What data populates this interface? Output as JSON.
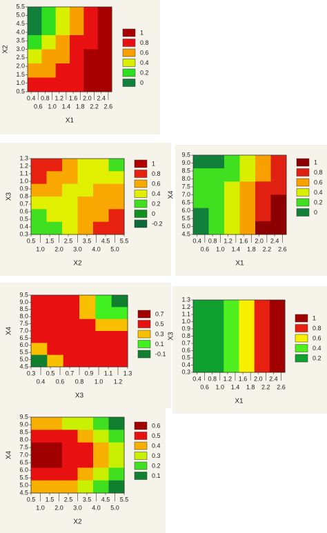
{
  "chart_data": [
    {
      "type": "contour",
      "xlabel": "X1",
      "ylabel": "X2",
      "xlim": [
        0.3,
        2.7
      ],
      "ylim": [
        0.5,
        5.5
      ],
      "xticks": [
        0.4,
        0.6,
        0.8,
        {
          "value": 1,
          "label": "1.0"
        },
        1.2,
        1.4,
        1.6,
        1.8,
        {
          "value": 2,
          "label": "2.0"
        },
        2.2,
        2.4,
        2.6
      ],
      "yticks": [
        0.5,
        {
          "value": 1,
          "label": "1.0"
        },
        1.5,
        {
          "value": 2,
          "label": "2.0"
        },
        2.5,
        {
          "value": 3,
          "label": "3.0"
        },
        3.5,
        {
          "value": 4,
          "label": "4.0"
        },
        4.5,
        {
          "value": 5,
          "label": "5.0"
        },
        5.5
      ],
      "z": [
        [
          0.0,
          0.2,
          0.5,
          0.7,
          0.9,
          1.05
        ],
        [
          0.1,
          0.3,
          0.55,
          0.75,
          0.95,
          1.05
        ],
        [
          0.3,
          0.45,
          0.6,
          0.8,
          0.95,
          1.05
        ],
        [
          0.5,
          0.6,
          0.7,
          0.85,
          1.0,
          1.05
        ],
        [
          0.7,
          0.75,
          0.8,
          0.9,
          1.0,
          1.05
        ],
        [
          0.85,
          0.85,
          0.9,
          0.95,
          1.0,
          1.05
        ]
      ],
      "levels": [
        1,
        0.8,
        0.6,
        0.4,
        0.2,
        0
      ],
      "colors": [
        "#a80000",
        "#e81010",
        "#f8a000",
        "#d8f000",
        "#30e020",
        "#10803a"
      ]
    },
    {
      "type": "contour",
      "xlabel": "X2",
      "ylabel": "X3",
      "xlim": [
        0.5,
        5.5
      ],
      "ylim": [
        0.3,
        1.3
      ],
      "xticks": [
        0.5,
        {
          "value": 1,
          "label": "1.0"
        },
        1.5,
        {
          "value": 2,
          "label": "2.0"
        },
        2.5,
        {
          "value": 3,
          "label": "3.0"
        },
        3.5,
        {
          "value": 4,
          "label": "4.0"
        },
        4.5,
        {
          "value": 5,
          "label": "5.0"
        },
        5.5
      ],
      "yticks": [
        0.3,
        0.4,
        0.5,
        0.6,
        0.7,
        0.8,
        0.9,
        {
          "value": 1,
          "label": "1.0"
        },
        1.1,
        1.2,
        1.3
      ],
      "z": [
        [
          0.9,
          0.8,
          0.6,
          0.5,
          0.4,
          0.3
        ],
        [
          0.8,
          0.7,
          0.6,
          0.5,
          0.45,
          0.4
        ],
        [
          0.6,
          0.6,
          0.55,
          0.55,
          0.6,
          0.6
        ],
        [
          0.45,
          0.5,
          0.55,
          0.6,
          0.65,
          0.7
        ],
        [
          0.3,
          0.4,
          0.5,
          0.6,
          0.75,
          0.85
        ],
        [
          0.2,
          0.3,
          0.5,
          0.65,
          0.85,
          0.95
        ]
      ],
      "levels": [
        1,
        0.8,
        0.6,
        0.4,
        0.2,
        0,
        -0.2
      ],
      "colors": [
        "#b00000",
        "#e82010",
        "#f8a800",
        "#e0f000",
        "#40e020",
        "#109020",
        "#0c6a3a"
      ]
    },
    {
      "type": "contour",
      "xlabel": "X1",
      "ylabel": "X4",
      "xlim": [
        0.3,
        2.7
      ],
      "ylim": [
        4.5,
        9.5
      ],
      "xticks": [
        0.4,
        0.6,
        0.8,
        {
          "value": 1,
          "label": "1.0"
        },
        1.2,
        1.4,
        1.6,
        1.8,
        {
          "value": 2,
          "label": "2.0"
        },
        2.2,
        2.4,
        2.6
      ],
      "yticks": [
        4.5,
        {
          "value": 5,
          "label": "5.0"
        },
        5.5,
        {
          "value": 6,
          "label": "6.0"
        },
        6.5,
        {
          "value": 7,
          "label": "7.0"
        },
        7.5,
        {
          "value": 8,
          "label": "8.0"
        },
        8.5,
        {
          "value": 9,
          "label": "9.0"
        },
        9.5
      ],
      "z": [
        [
          0.1,
          0.15,
          0.3,
          0.45,
          0.65,
          0.85
        ],
        [
          0.2,
          0.25,
          0.35,
          0.5,
          0.7,
          0.85
        ],
        [
          0.25,
          0.3,
          0.4,
          0.6,
          0.8,
          0.95
        ],
        [
          0.2,
          0.3,
          0.45,
          0.7,
          0.9,
          1.05
        ],
        [
          0.1,
          0.25,
          0.45,
          0.75,
          0.95,
          1.05
        ],
        [
          0.0,
          0.2,
          0.45,
          0.75,
          1.0,
          1.05
        ]
      ],
      "levels": [
        1,
        0.8,
        0.6,
        0.4,
        0.2,
        0
      ],
      "colors": [
        "#8c0000",
        "#e02010",
        "#f8a000",
        "#d8f000",
        "#40e020",
        "#10803a"
      ]
    },
    {
      "type": "contour",
      "xlabel": "X3",
      "ylabel": "X4",
      "xlim": [
        0.3,
        1.3
      ],
      "ylim": [
        4.5,
        9.5
      ],
      "xticks": [
        0.3,
        0.4,
        0.5,
        0.6,
        0.7,
        0.8,
        0.9,
        {
          "value": 1,
          "label": "1.0"
        },
        1.1,
        1.2,
        1.3
      ],
      "yticks": [
        4.5,
        {
          "value": 5,
          "label": "5.0"
        },
        5.5,
        {
          "value": 6,
          "label": "6.0"
        },
        6.5,
        {
          "value": 7,
          "label": "7.0"
        },
        7.5,
        {
          "value": 8,
          "label": "8.0"
        },
        8.5,
        {
          "value": 9,
          "label": "9.0"
        },
        9.5
      ],
      "z": [
        [
          0.5,
          0.55,
          0.5,
          0.3,
          0.1,
          -0.1
        ],
        [
          0.6,
          0.6,
          0.55,
          0.45,
          0.25,
          0.1
        ],
        [
          0.65,
          0.65,
          0.6,
          0.55,
          0.45,
          0.3
        ],
        [
          0.55,
          0.65,
          0.65,
          0.6,
          0.55,
          0.5
        ],
        [
          0.3,
          0.55,
          0.65,
          0.65,
          0.6,
          0.55
        ],
        [
          0.0,
          0.35,
          0.6,
          0.65,
          0.65,
          0.65
        ]
      ],
      "levels": [
        0.7,
        0.5,
        0.3,
        0.1,
        -0.1
      ],
      "colors": [
        "#a00000",
        "#e81010",
        "#f8c000",
        "#40f020",
        "#108030"
      ]
    },
    {
      "type": "contour",
      "xlabel": "X1",
      "ylabel": "X3",
      "xlim": [
        0.3,
        2.7
      ],
      "ylim": [
        0.3,
        1.3
      ],
      "xticks": [
        0.4,
        0.6,
        0.8,
        {
          "value": 1,
          "label": "1.0"
        },
        1.2,
        1.4,
        1.6,
        1.8,
        {
          "value": 2,
          "label": "2.0"
        },
        2.2,
        2.4,
        2.6
      ],
      "yticks": [
        0.3,
        0.4,
        0.5,
        0.6,
        0.7,
        0.8,
        0.9,
        {
          "value": 1,
          "label": "1.0"
        },
        1.1,
        1.2,
        1.3
      ],
      "z": [
        [
          0.3,
          0.3,
          0.5,
          0.7,
          0.85,
          1.0
        ],
        [
          0.3,
          0.3,
          0.5,
          0.7,
          0.85,
          1.0
        ],
        [
          0.25,
          0.3,
          0.45,
          0.65,
          0.85,
          1.0
        ],
        [
          0.25,
          0.3,
          0.45,
          0.65,
          0.85,
          1.0
        ],
        [
          0.2,
          0.25,
          0.45,
          0.65,
          0.85,
          1.0
        ],
        [
          0.2,
          0.25,
          0.45,
          0.65,
          0.85,
          1.0
        ]
      ],
      "levels": [
        1,
        0.8,
        0.6,
        0.4,
        0.2
      ],
      "colors": [
        "#a00000",
        "#e82010",
        "#f8f000",
        "#50f020",
        "#10a030"
      ]
    },
    {
      "type": "contour",
      "xlabel": "X2",
      "ylabel": "X4",
      "xlim": [
        0.5,
        5.5
      ],
      "ylim": [
        4.5,
        9.5
      ],
      "xticks": [
        0.5,
        {
          "value": 1,
          "label": "1.0"
        },
        1.5,
        {
          "value": 2,
          "label": "2.0"
        },
        2.5,
        {
          "value": 3,
          "label": "3.0"
        },
        3.5,
        {
          "value": 4,
          "label": "4.0"
        },
        4.5,
        {
          "value": 5,
          "label": "5.0"
        },
        5.5
      ],
      "yticks": [
        4.5,
        {
          "value": 5,
          "label": "5.0"
        },
        5.5,
        {
          "value": 6,
          "label": "6.0"
        },
        6.5,
        {
          "value": 7,
          "label": "7.0"
        },
        7.5,
        {
          "value": 8,
          "label": "8.0"
        },
        8.5,
        {
          "value": 9,
          "label": "9.0"
        },
        9.5
      ],
      "z": [
        [
          0.4,
          0.4,
          0.35,
          0.3,
          0.2,
          0.05
        ],
        [
          0.55,
          0.55,
          0.5,
          0.4,
          0.3,
          0.2
        ],
        [
          0.6,
          0.6,
          0.55,
          0.5,
          0.4,
          0.3
        ],
        [
          0.6,
          0.6,
          0.55,
          0.5,
          0.4,
          0.3
        ],
        [
          0.55,
          0.55,
          0.5,
          0.45,
          0.35,
          0.25
        ],
        [
          0.45,
          0.45,
          0.4,
          0.35,
          0.25,
          0.15
        ]
      ],
      "levels": [
        0.6,
        0.5,
        0.4,
        0.3,
        0.2,
        0.1
      ],
      "colors": [
        "#a00000",
        "#e81010",
        "#f8b000",
        "#c8f000",
        "#40e020",
        "#108030"
      ]
    }
  ]
}
